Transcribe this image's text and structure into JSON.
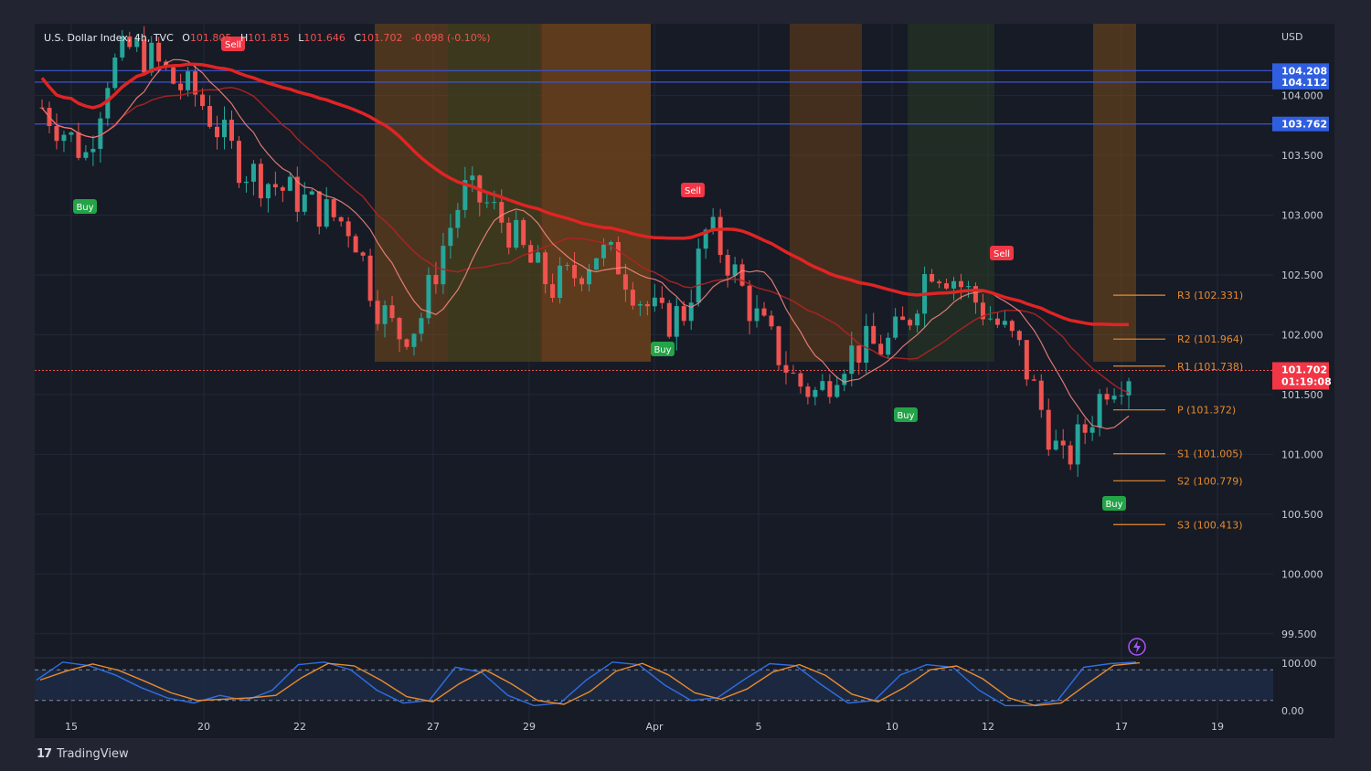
{
  "header": {
    "symbol": "U.S. Dollar Index, 4h, TVC",
    "o_label": "O",
    "o_value": "101.805",
    "h_label": "H",
    "h_value": "101.815",
    "l_label": "L",
    "l_value": "101.646",
    "c_label": "C",
    "c_value": "101.702",
    "change": "-0.098 (-0.10%)"
  },
  "currency": "USD",
  "footer": {
    "brand": "TradingView"
  },
  "colors": {
    "background": "#161b26",
    "grid": "#232838",
    "up": "#26a69a",
    "down": "#ef5350",
    "ma_slow": "#e02424",
    "ma_fast": "#ff8a80",
    "signal_line": "#22c55e",
    "pivot": "#e88b2d",
    "level_line": "#3b55d4",
    "stoch_k": "#2f6fe4",
    "stoch_d": "#e88b2d"
  },
  "chart_data": {
    "type": "candlestick",
    "timeframe": "4h",
    "y_axis": {
      "range": [
        99.3,
        104.6
      ],
      "ticks": [
        "104.000",
        "103.500",
        "103.000",
        "102.500",
        "102.000",
        "101.500",
        "101.000",
        "100.500",
        "100.000",
        "99.500"
      ]
    },
    "x_axis": {
      "ticks": [
        "15",
        "20",
        "22",
        "27",
        "29",
        "Apr",
        "5",
        "10",
        "12",
        "17",
        "19"
      ]
    },
    "current_price": {
      "value": "101.702",
      "countdown": "01:19:08"
    },
    "horizontal_levels": [
      "104.208",
      "104.112",
      "103.762"
    ],
    "pivot_points": [
      {
        "label": "R3 (102.331)",
        "value": 102.331
      },
      {
        "label": "R2 (101.964)",
        "value": 101.964
      },
      {
        "label": "R1 (101.738)",
        "value": 101.738
      },
      {
        "label": "P (101.372)",
        "value": 101.372
      },
      {
        "label": "S1 (101.005)",
        "value": 101.005
      },
      {
        "label": "S2 (100.779)",
        "value": 100.779
      },
      {
        "label": "S3 (100.413)",
        "value": 100.413
      }
    ],
    "signals": [
      {
        "type": "Sell",
        "label": "Sell",
        "date": "Mar 20"
      },
      {
        "type": "Buy",
        "label": "Buy",
        "date": "Mar 15"
      },
      {
        "type": "Sell",
        "label": "Sell",
        "date": "Apr 1"
      },
      {
        "type": "Buy",
        "label": "Buy",
        "date": "Apr 1"
      },
      {
        "type": "Sell",
        "label": "Sell",
        "date": "Apr 11"
      },
      {
        "type": "Buy",
        "label": "Buy",
        "date": "Apr 10"
      },
      {
        "type": "Buy",
        "label": "Buy",
        "date": "Apr 17"
      }
    ],
    "close_path": [
      103.9,
      103.7,
      103.5,
      104.2,
      104.4,
      104.3,
      104.1,
      104.0,
      103.7,
      103.4,
      103.3,
      103.2,
      103.1,
      103.0,
      102.9,
      102.3,
      102.0,
      102.1,
      102.7,
      103.2,
      103.1,
      102.9,
      102.6,
      102.4,
      102.5,
      102.7,
      102.6,
      102.3,
      102.1,
      102.2,
      102.9,
      102.6,
      102.2,
      101.9,
      101.6,
      101.5,
      101.8,
      101.9,
      101.9,
      102.1,
      102.6,
      102.5,
      102.3,
      102.1,
      101.9,
      101.4,
      100.9,
      101.2,
      101.6,
      101.7
    ],
    "stochastic": {
      "labels": [
        "100.00",
        "0.00"
      ],
      "k": [
        60,
        95,
        88,
        70,
        45,
        25,
        15,
        30,
        20,
        40,
        90,
        95,
        80,
        40,
        15,
        20,
        85,
        75,
        30,
        10,
        15,
        60,
        95,
        90,
        50,
        20,
        25,
        60,
        92,
        88,
        50,
        15,
        20,
        70,
        90,
        85,
        40,
        10,
        10,
        20,
        85,
        92,
        95
      ]
    }
  }
}
